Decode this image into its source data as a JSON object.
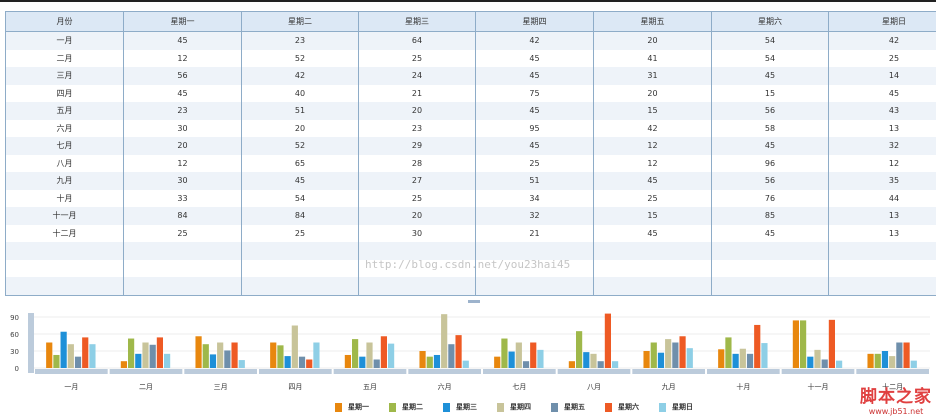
{
  "table": {
    "headers": [
      "月份",
      "星期一",
      "星期二",
      "星期三",
      "星期四",
      "星期五",
      "星期六",
      "星期日"
    ],
    "rows": [
      [
        "一月",
        45,
        23,
        64,
        42,
        20,
        54,
        42
      ],
      [
        "二月",
        12,
        52,
        25,
        45,
        41,
        54,
        25
      ],
      [
        "三月",
        56,
        42,
        24,
        45,
        31,
        45,
        14
      ],
      [
        "四月",
        45,
        40,
        21,
        75,
        20,
        15,
        45
      ],
      [
        "五月",
        23,
        51,
        20,
        45,
        15,
        56,
        43
      ],
      [
        "六月",
        30,
        20,
        23,
        95,
        42,
        58,
        13
      ],
      [
        "七月",
        20,
        52,
        29,
        45,
        12,
        45,
        32
      ],
      [
        "八月",
        12,
        65,
        28,
        25,
        12,
        96,
        12
      ],
      [
        "九月",
        30,
        45,
        27,
        51,
        45,
        56,
        35
      ],
      [
        "十月",
        33,
        54,
        25,
        34,
        25,
        76,
        44
      ],
      [
        "十一月",
        84,
        84,
        20,
        32,
        15,
        85,
        13
      ],
      [
        "十二月",
        25,
        25,
        30,
        21,
        45,
        45,
        13
      ]
    ]
  },
  "watermark": "http://blog.csdn.net/you23hai45",
  "logo": {
    "name": "脚本之家",
    "url": "www.jb51.net"
  },
  "chart_data": {
    "type": "bar",
    "categories": [
      "一月",
      "二月",
      "三月",
      "四月",
      "五月",
      "六月",
      "七月",
      "八月",
      "九月",
      "十月",
      "十一月",
      "十二月"
    ],
    "yticks": [
      0,
      30,
      60,
      90
    ],
    "ylim": [
      0,
      95
    ],
    "legend": "bottom-right",
    "series": [
      {
        "name": "星期一",
        "color": "#e8870e",
        "values": [
          45,
          12,
          56,
          45,
          23,
          30,
          20,
          12,
          30,
          33,
          84,
          25
        ]
      },
      {
        "name": "星期二",
        "color": "#9fb84a",
        "values": [
          23,
          52,
          42,
          40,
          51,
          20,
          52,
          65,
          45,
          54,
          84,
          25
        ]
      },
      {
        "name": "星期三",
        "color": "#1e90d8",
        "values": [
          64,
          25,
          24,
          21,
          20,
          23,
          29,
          28,
          27,
          25,
          20,
          30
        ]
      },
      {
        "name": "星期四",
        "color": "#c8c49a",
        "values": [
          42,
          45,
          45,
          75,
          45,
          95,
          45,
          25,
          51,
          34,
          32,
          21
        ]
      },
      {
        "name": "星期五",
        "color": "#6f8fab",
        "values": [
          20,
          41,
          31,
          20,
          15,
          42,
          12,
          12,
          45,
          25,
          15,
          45
        ]
      },
      {
        "name": "星期六",
        "color": "#ee5a24",
        "values": [
          54,
          54,
          45,
          15,
          56,
          58,
          45,
          96,
          56,
          76,
          85,
          45
        ]
      },
      {
        "name": "星期日",
        "color": "#8ecfe6",
        "values": [
          42,
          25,
          14,
          45,
          43,
          13,
          32,
          12,
          35,
          44,
          13,
          13
        ]
      }
    ]
  }
}
